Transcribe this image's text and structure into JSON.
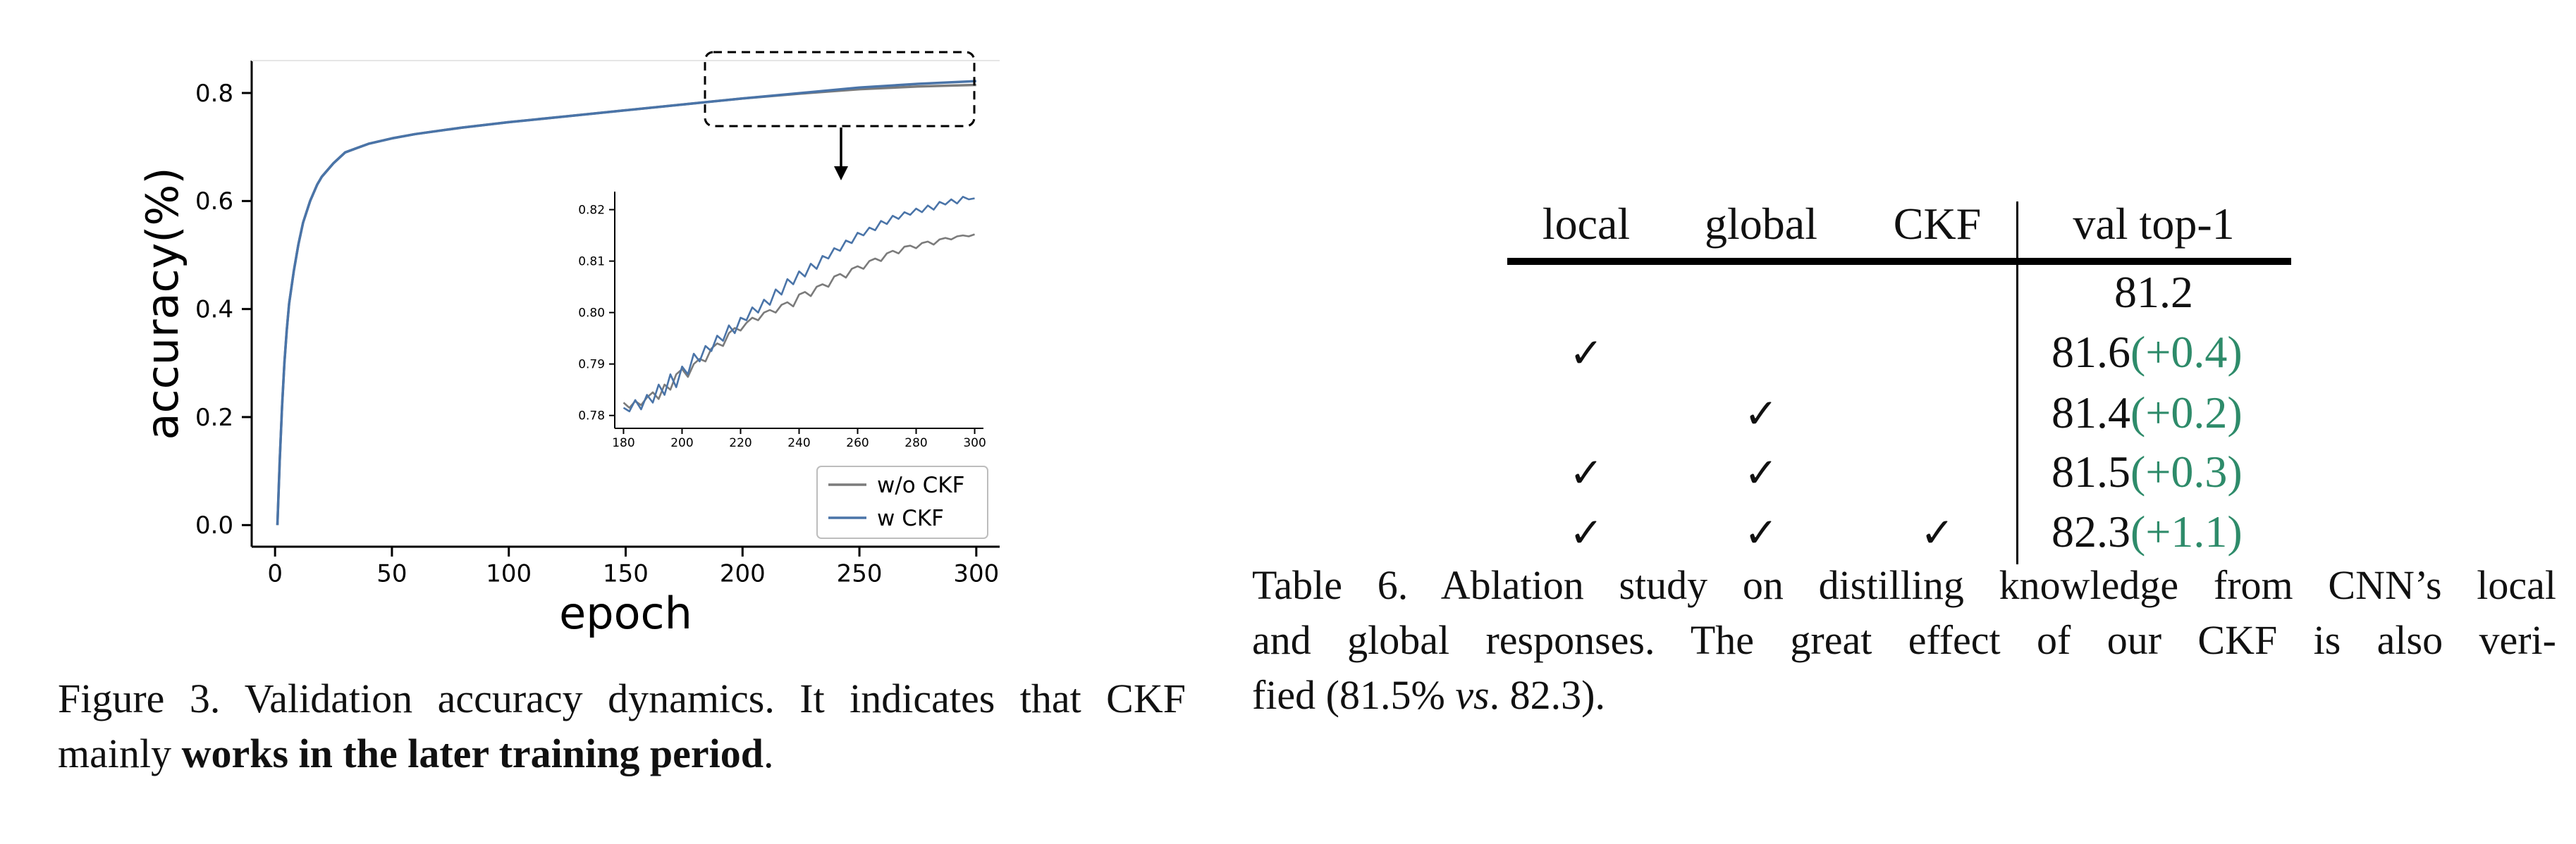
{
  "figure": {
    "caption_prefix": "Figure 3. Validation accuracy dynamics.  It indicates that CKF",
    "caption_line2_pre": "mainly ",
    "caption_bold": "works in the later training period",
    "caption_end": ".",
    "colors": {
      "wo_ckf": "#7b7b7b",
      "w_ckf": "#4a74a8"
    }
  },
  "chart_data": [
    {
      "type": "line",
      "xlabel": "epoch",
      "ylabel": "accuracy(%)",
      "xlim": [
        -10,
        310
      ],
      "ylim": [
        -0.04,
        0.86
      ],
      "xticks": [
        0,
        50,
        100,
        150,
        200,
        250,
        300
      ],
      "yticks": [
        0.0,
        0.2,
        0.4,
        0.6,
        0.8
      ],
      "legend": "lower-right",
      "series": [
        {
          "name": "w/o CKF",
          "x": [
            1,
            2,
            3,
            4,
            5,
            6,
            8,
            10,
            12,
            15,
            18,
            20,
            25,
            30,
            40,
            50,
            60,
            80,
            100,
            125,
            150,
            175,
            200,
            225,
            250,
            275,
            300
          ],
          "y": [
            0.0,
            0.12,
            0.22,
            0.3,
            0.36,
            0.41,
            0.47,
            0.52,
            0.56,
            0.6,
            0.63,
            0.645,
            0.67,
            0.69,
            0.706,
            0.716,
            0.724,
            0.736,
            0.746,
            0.757,
            0.768,
            0.779,
            0.79,
            0.799,
            0.807,
            0.812,
            0.815
          ]
        },
        {
          "name": "w CKF",
          "x": [
            1,
            2,
            3,
            4,
            5,
            6,
            8,
            10,
            12,
            15,
            18,
            20,
            25,
            30,
            40,
            50,
            60,
            80,
            100,
            125,
            150,
            175,
            200,
            225,
            250,
            275,
            300
          ],
          "y": [
            0.0,
            0.12,
            0.22,
            0.3,
            0.36,
            0.41,
            0.47,
            0.52,
            0.56,
            0.6,
            0.63,
            0.645,
            0.67,
            0.69,
            0.706,
            0.716,
            0.724,
            0.736,
            0.746,
            0.757,
            0.768,
            0.779,
            0.79,
            0.8,
            0.81,
            0.817,
            0.822
          ]
        }
      ]
    },
    {
      "type": "line",
      "title": "",
      "xlim": [
        177,
        303
      ],
      "ylim": [
        0.7775,
        0.8235
      ],
      "xticks": [
        180,
        200,
        220,
        240,
        260,
        280,
        300
      ],
      "yticks": [
        0.78,
        0.79,
        0.8,
        0.81,
        0.82
      ],
      "series": [
        {
          "name": "w/o CKF",
          "x": [
            180,
            182,
            184,
            186,
            188,
            190,
            192,
            194,
            196,
            198,
            200,
            202,
            204,
            206,
            208,
            210,
            212,
            214,
            216,
            218,
            220,
            222,
            224,
            226,
            228,
            230,
            232,
            234,
            236,
            238,
            240,
            242,
            244,
            246,
            248,
            250,
            252,
            254,
            256,
            258,
            260,
            262,
            264,
            266,
            268,
            270,
            272,
            274,
            276,
            278,
            280,
            282,
            284,
            286,
            288,
            290,
            292,
            294,
            296,
            298,
            300
          ],
          "y": [
            0.7825,
            0.7815,
            0.7828,
            0.782,
            0.7835,
            0.7845,
            0.7832,
            0.786,
            0.785,
            0.788,
            0.789,
            0.7875,
            0.79,
            0.791,
            0.7905,
            0.793,
            0.794,
            0.7935,
            0.796,
            0.797,
            0.7965,
            0.798,
            0.799,
            0.7985,
            0.8,
            0.8005,
            0.8,
            0.8015,
            0.802,
            0.8012,
            0.8035,
            0.804,
            0.8032,
            0.805,
            0.8055,
            0.805,
            0.807,
            0.8075,
            0.8068,
            0.8085,
            0.809,
            0.8085,
            0.81,
            0.8105,
            0.81,
            0.8115,
            0.812,
            0.8115,
            0.8128,
            0.813,
            0.8125,
            0.8135,
            0.8138,
            0.8132,
            0.8142,
            0.8145,
            0.8142,
            0.8148,
            0.815,
            0.8148,
            0.8152
          ]
        },
        {
          "name": "w CKF",
          "x": [
            180,
            182,
            184,
            186,
            188,
            190,
            192,
            194,
            196,
            198,
            200,
            202,
            204,
            206,
            208,
            210,
            212,
            214,
            216,
            218,
            220,
            222,
            224,
            226,
            228,
            230,
            232,
            234,
            236,
            238,
            240,
            242,
            244,
            246,
            248,
            250,
            252,
            254,
            256,
            258,
            260,
            262,
            264,
            266,
            268,
            270,
            272,
            274,
            276,
            278,
            280,
            282,
            284,
            286,
            288,
            290,
            292,
            294,
            296,
            298,
            300
          ],
          "y": [
            0.7815,
            0.7808,
            0.783,
            0.7812,
            0.784,
            0.7825,
            0.786,
            0.784,
            0.788,
            0.7855,
            0.7895,
            0.788,
            0.792,
            0.7905,
            0.7935,
            0.7925,
            0.7955,
            0.7945,
            0.7975,
            0.796,
            0.799,
            0.7985,
            0.801,
            0.8,
            0.8025,
            0.8015,
            0.8045,
            0.8035,
            0.8065,
            0.8055,
            0.808,
            0.807,
            0.8095,
            0.8085,
            0.811,
            0.8105,
            0.8125,
            0.812,
            0.814,
            0.8135,
            0.8155,
            0.815,
            0.8165,
            0.816,
            0.8178,
            0.8172,
            0.8188,
            0.8182,
            0.8195,
            0.819,
            0.8202,
            0.8195,
            0.8208,
            0.82,
            0.8215,
            0.821,
            0.822,
            0.8212,
            0.8225,
            0.822,
            0.8222
          ]
        }
      ]
    }
  ],
  "table": {
    "headers": [
      "local",
      "global",
      "CKF",
      "val top-1"
    ],
    "check_glyph": "✓",
    "rows": [
      {
        "local": false,
        "global": false,
        "ckf": false,
        "value": "81.2",
        "delta": ""
      },
      {
        "local": true,
        "global": false,
        "ckf": false,
        "value": "81.6",
        "delta": "(+0.4)"
      },
      {
        "local": false,
        "global": true,
        "ckf": false,
        "value": "81.4",
        "delta": "(+0.2)"
      },
      {
        "local": true,
        "global": true,
        "ckf": false,
        "value": "81.5",
        "delta": "(+0.3)"
      },
      {
        "local": true,
        "global": true,
        "ckf": true,
        "value": "82.3",
        "delta": "(+1.1)"
      }
    ],
    "caption_line1": "Table 6. Ablation study on distilling knowledge from CNN’s local",
    "caption_line2": "and global responses.  The great effect of our CKF is also veri-",
    "caption_line3_pre": "fied (81.5% ",
    "caption_line3_italic": "vs",
    "caption_line3_post": ". 82.3).",
    "delta_color": "#2e8b6a"
  }
}
